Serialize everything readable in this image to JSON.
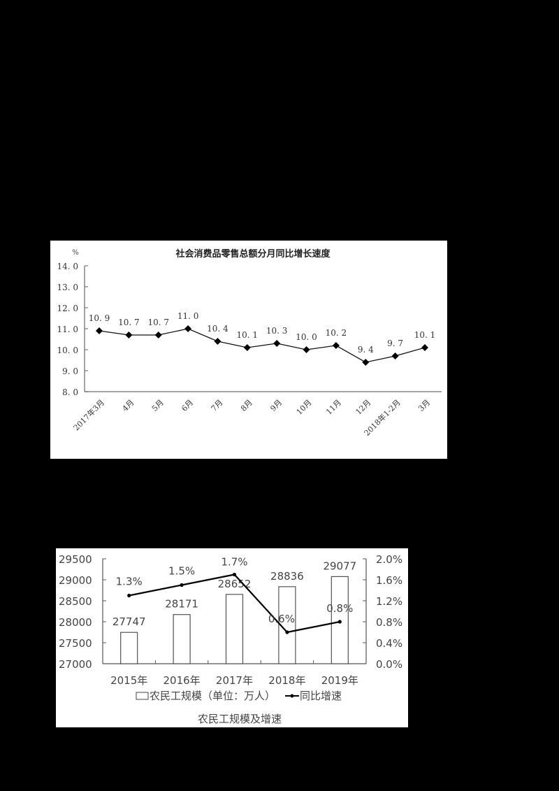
{
  "chart_data": [
    {
      "type": "line",
      "title": "社会消费品零售总额分月同比增长速度",
      "ylabel": "%",
      "xlabel": "",
      "ylim": [
        8.0,
        14.0
      ],
      "yticks": [
        "14.0",
        "13.0",
        "12.0",
        "11.0",
        "10.0",
        "9.0",
        "8.0"
      ],
      "categories": [
        "2017年3月",
        "4月",
        "5月",
        "6月",
        "7月",
        "8月",
        "9月",
        "10月",
        "11月",
        "12月",
        "2018年1-2月",
        "3月"
      ],
      "series": [
        {
          "name": "同比增长速度",
          "values": [
            10.9,
            10.7,
            10.7,
            11.0,
            10.4,
            10.1,
            10.3,
            10.0,
            10.2,
            9.4,
            9.7,
            10.1
          ],
          "labels": [
            "10.9",
            "10.7",
            "10.7",
            "11.0",
            "10.4",
            "10.1",
            "10.3",
            "10.0",
            "10.2",
            "9.4",
            "9.7",
            "10.1"
          ]
        }
      ],
      "marker": "diamond",
      "grid": false,
      "legend": "none"
    },
    {
      "type": "bar+line",
      "title": "农民工规模及增速",
      "categories": [
        "2015年",
        "2016年",
        "2017年",
        "2018年",
        "2019年"
      ],
      "y_left": {
        "ylim": [
          27000,
          29500
        ],
        "ticks": [
          "29500",
          "29000",
          "28500",
          "28000",
          "27500",
          "27000"
        ]
      },
      "y_right": {
        "ylim": [
          0.0,
          2.0
        ],
        "ticks": [
          "2.0%",
          "1.6%",
          "1.2%",
          "0.8%",
          "0.4%",
          "0.0%"
        ]
      },
      "series": [
        {
          "name": "农民工规模（单位：万人）",
          "type": "bar",
          "axis": "left",
          "values": [
            27747,
            28171,
            28652,
            28836,
            29077
          ],
          "labels": [
            "27747",
            "28171",
            "28652",
            "28836",
            "29077"
          ]
        },
        {
          "name": "同比增速",
          "type": "line",
          "axis": "right",
          "values": [
            1.3,
            1.5,
            1.7,
            0.6,
            0.8
          ],
          "labels": [
            "1.3%",
            "1.5%",
            "1.7%",
            "0.6%",
            "0.8%"
          ]
        }
      ],
      "legend": {
        "position": "bottom",
        "items": [
          "农民工规模（单位：万人）",
          "同比增速"
        ]
      },
      "grid": false
    }
  ]
}
